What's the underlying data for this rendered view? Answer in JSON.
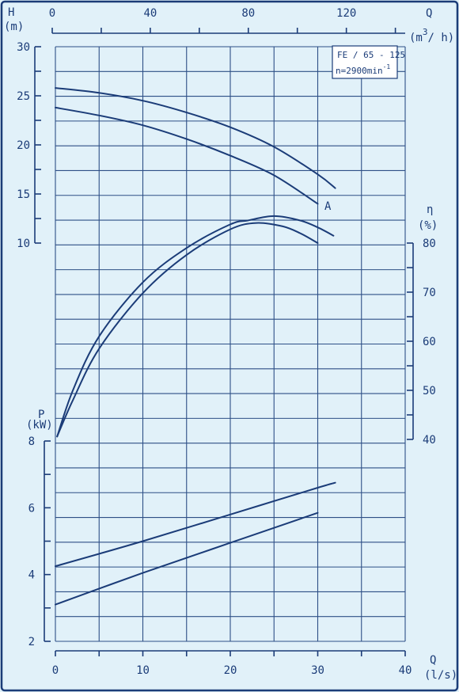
{
  "chart_data": {
    "type": "line",
    "model_box": {
      "line1": "FE / 65 - 125",
      "line2": "n=2900min",
      "line2_exp": "-1"
    },
    "axes": {
      "H": {
        "name": "H",
        "unit": "(m)",
        "range": [
          0,
          30
        ],
        "ticks": [
          10,
          15,
          20,
          25,
          30
        ]
      },
      "eta": {
        "name": "η",
        "unit": "(%)",
        "range": [
          40,
          80
        ],
        "ticks": [
          40,
          50,
          60,
          70,
          80
        ]
      },
      "P": {
        "name": "P",
        "unit": "(kW)",
        "range": [
          2,
          8
        ],
        "ticks": [
          2,
          4,
          6,
          8
        ]
      },
      "Q_m3h": {
        "name": "Q",
        "unit": "(m",
        "unit_exp": "3",
        "unit_end": "/ h)",
        "range": [
          0,
          144
        ],
        "ticks": [
          0,
          40,
          80,
          120
        ]
      },
      "Q_ls": {
        "name": "Q",
        "unit": "(l/s)",
        "range": [
          0,
          40
        ],
        "ticks": [
          0,
          10,
          20,
          30,
          40
        ]
      }
    },
    "curve_label": "A",
    "series": [
      {
        "axis": "H",
        "x": [
          0,
          5,
          10,
          15,
          20,
          25,
          30,
          32
        ],
        "values": [
          25.8,
          25.3,
          24.5,
          23.3,
          21.8,
          19.8,
          17.0,
          15.6
        ]
      },
      {
        "axis": "H",
        "x": [
          0,
          5,
          10,
          15,
          20,
          25,
          30
        ],
        "values": [
          23.8,
          23.0,
          22.0,
          20.6,
          18.9,
          16.9,
          14.0
        ]
      },
      {
        "axis": "eta",
        "x": [
          0.2,
          2,
          5,
          10,
          15,
          20,
          22,
          25,
          28,
          30,
          31.8
        ],
        "values": [
          40.6,
          50,
          61,
          72,
          79,
          83.8,
          84.6,
          85.5,
          84.6,
          83.2,
          81.5
        ]
      },
      {
        "axis": "eta",
        "x": [
          0.2,
          2,
          5,
          10,
          15,
          20,
          23,
          26,
          28,
          30
        ],
        "values": [
          40.6,
          48,
          58.5,
          69.8,
          77.6,
          82.8,
          84.1,
          83.4,
          82,
          80
        ]
      },
      {
        "axis": "P",
        "x": [
          0,
          10,
          20,
          30,
          32
        ],
        "values": [
          4.25,
          5.0,
          5.8,
          6.6,
          6.75
        ]
      },
      {
        "axis": "P",
        "x": [
          0,
          10,
          20,
          30
        ],
        "values": [
          3.1,
          4.05,
          4.95,
          5.85
        ]
      }
    ]
  }
}
